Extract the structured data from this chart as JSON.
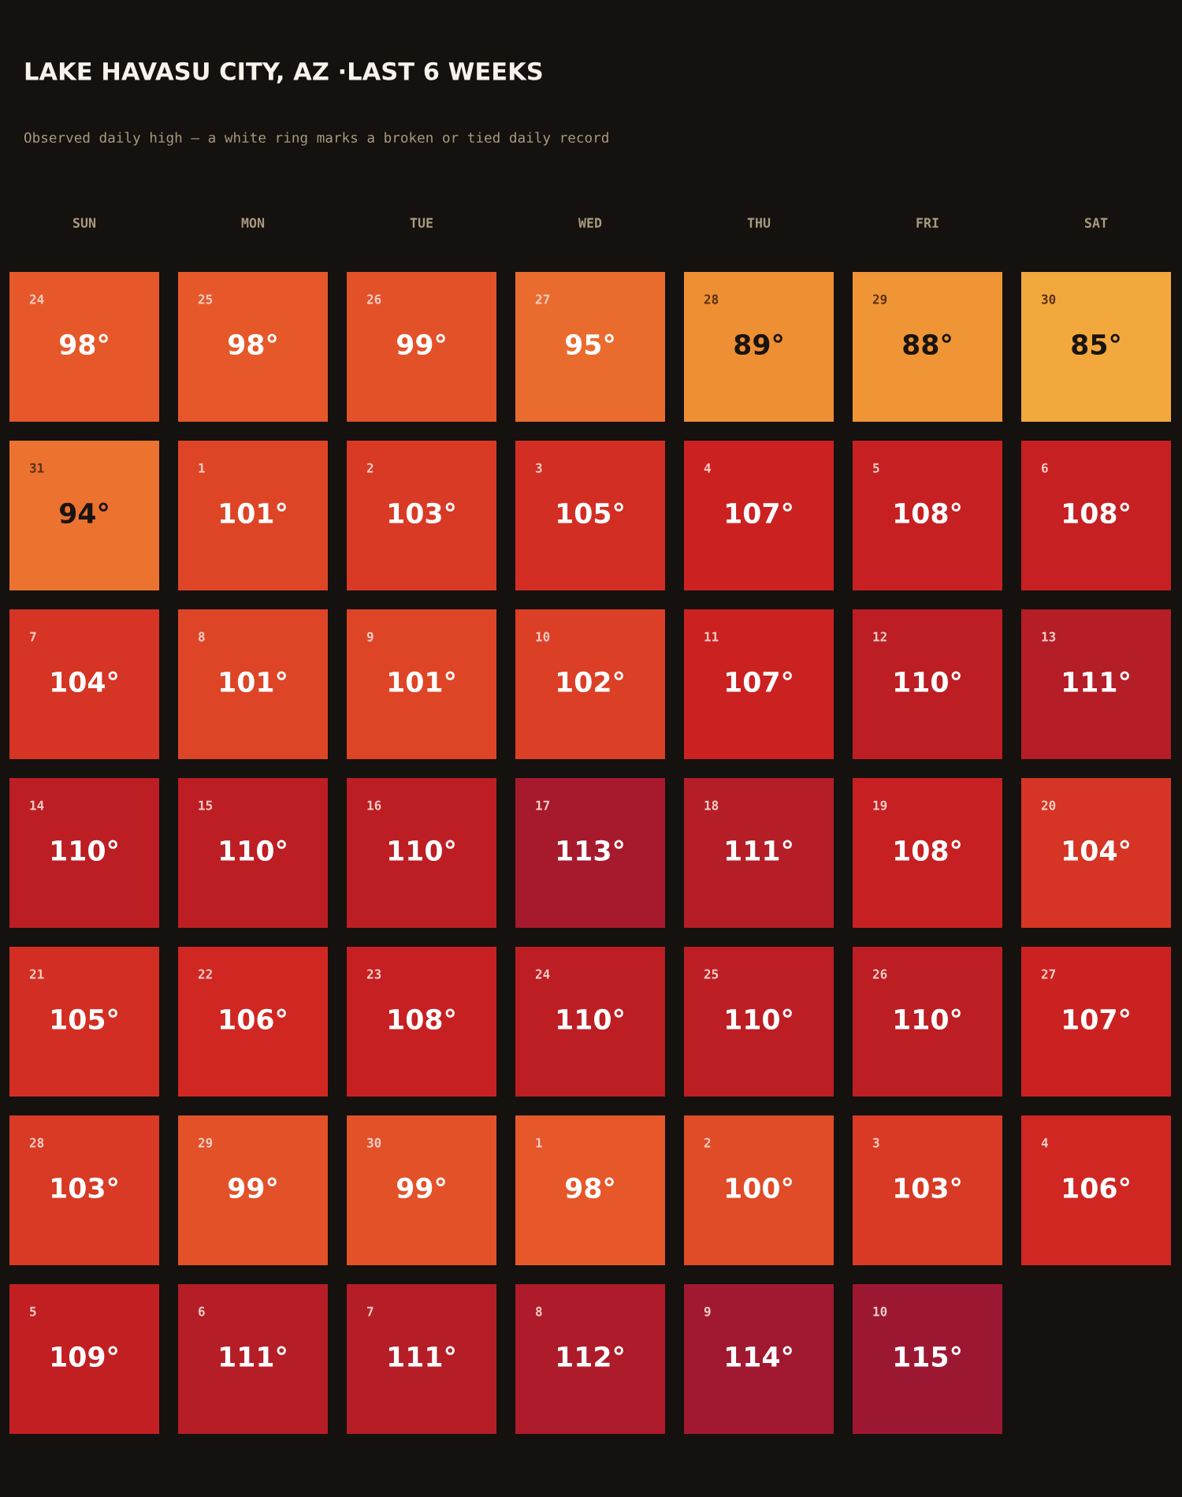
{
  "chart_data": {
    "type": "heatmap",
    "title": "LAKE HAVASU CITY, AZ ·LAST 6 WEEKS",
    "subtitle": "Observed daily high — a white ring marks a broken or tied daily record",
    "categories": [
      "SUN",
      "MON",
      "TUE",
      "WED",
      "THU",
      "FRI",
      "SAT"
    ],
    "y_categories": [
      null,
      null,
      null,
      null,
      null,
      null,
      null
    ],
    "cells": [
      [
        98,
        98,
        99,
        95,
        89,
        88,
        85
      ],
      [
        94,
        101,
        103,
        105,
        107,
        108,
        108
      ],
      [
        104,
        101,
        101,
        102,
        107,
        110,
        111
      ],
      [
        110,
        110,
        110,
        113,
        111,
        108,
        104
      ],
      [
        105,
        106,
        108,
        110,
        110,
        110,
        107
      ],
      [
        103,
        99,
        99,
        98,
        100,
        103,
        106
      ],
      [
        109,
        111,
        111,
        112,
        114,
        115,
        null
      ]
    ],
    "cell_labels": [
      [
        "98°",
        "98°",
        "99°",
        "95°",
        "89°",
        "88°",
        "85°"
      ],
      [
        "94°",
        "101°",
        "103°",
        "105°",
        "107°",
        "108°",
        "108°"
      ],
      [
        "104°",
        "101°",
        "101°",
        "102°",
        "107°",
        "110°",
        "111°"
      ],
      [
        "110°",
        "110°",
        "110°",
        "113°",
        "111°",
        "108°",
        "104°"
      ],
      [
        "105°",
        "106°",
        "108°",
        "110°",
        "110°",
        "110°",
        "107°"
      ],
      [
        "103°",
        "99°",
        "99°",
        "98°",
        "100°",
        "103°",
        "106°"
      ],
      [
        "109°",
        "111°",
        "111°",
        "112°",
        "114°",
        "115°",
        null
      ]
    ],
    "annotations": [
      "24",
      "25",
      "26",
      "27",
      "28",
      "29",
      "30",
      "31",
      "1",
      "2",
      "3",
      "4",
      "5",
      "6",
      "7",
      "8",
      "9",
      "10",
      "11",
      "12",
      "13",
      "14",
      "15",
      "16",
      "17",
      "18",
      "19",
      "20",
      "21",
      "22",
      "23",
      "24",
      "25",
      "26",
      "27",
      "28",
      "29",
      "30",
      "1",
      "2",
      "3",
      "4",
      "5",
      "6",
      "7",
      "8",
      "9",
      "10"
    ]
  }
}
